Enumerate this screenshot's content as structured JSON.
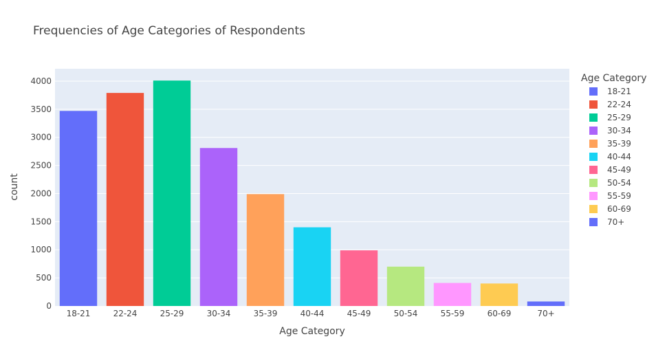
{
  "chart_data": {
    "type": "bar",
    "title": "Frequencies of Age Categories of Respondents",
    "xlabel": "Age Category",
    "ylabel": "count",
    "categories": [
      "18-21",
      "22-24",
      "25-29",
      "30-34",
      "35-39",
      "40-44",
      "45-49",
      "50-54",
      "55-59",
      "60-69",
      "70+"
    ],
    "values": [
      3470,
      3790,
      4010,
      2810,
      1990,
      1400,
      990,
      700,
      410,
      400,
      80
    ],
    "colors": [
      "#636efa",
      "#EF553B",
      "#00cc96",
      "#ab63fa",
      "#FFA15A",
      "#19d3f3",
      "#FF6692",
      "#B6E880",
      "#FF97FF",
      "#FECB52",
      "#636efa"
    ],
    "ylim": [
      0,
      4220
    ],
    "yticks": [
      0,
      500,
      1000,
      1500,
      2000,
      2500,
      3000,
      3500,
      4000
    ],
    "grid": true,
    "plot_background": "#E5ECF6",
    "legend": {
      "title": "Age Category",
      "placement": "right",
      "items": [
        "18-21",
        "22-24",
        "25-29",
        "30-34",
        "35-39",
        "40-44",
        "45-49",
        "50-54",
        "55-59",
        "60-69",
        "70+"
      ]
    }
  }
}
